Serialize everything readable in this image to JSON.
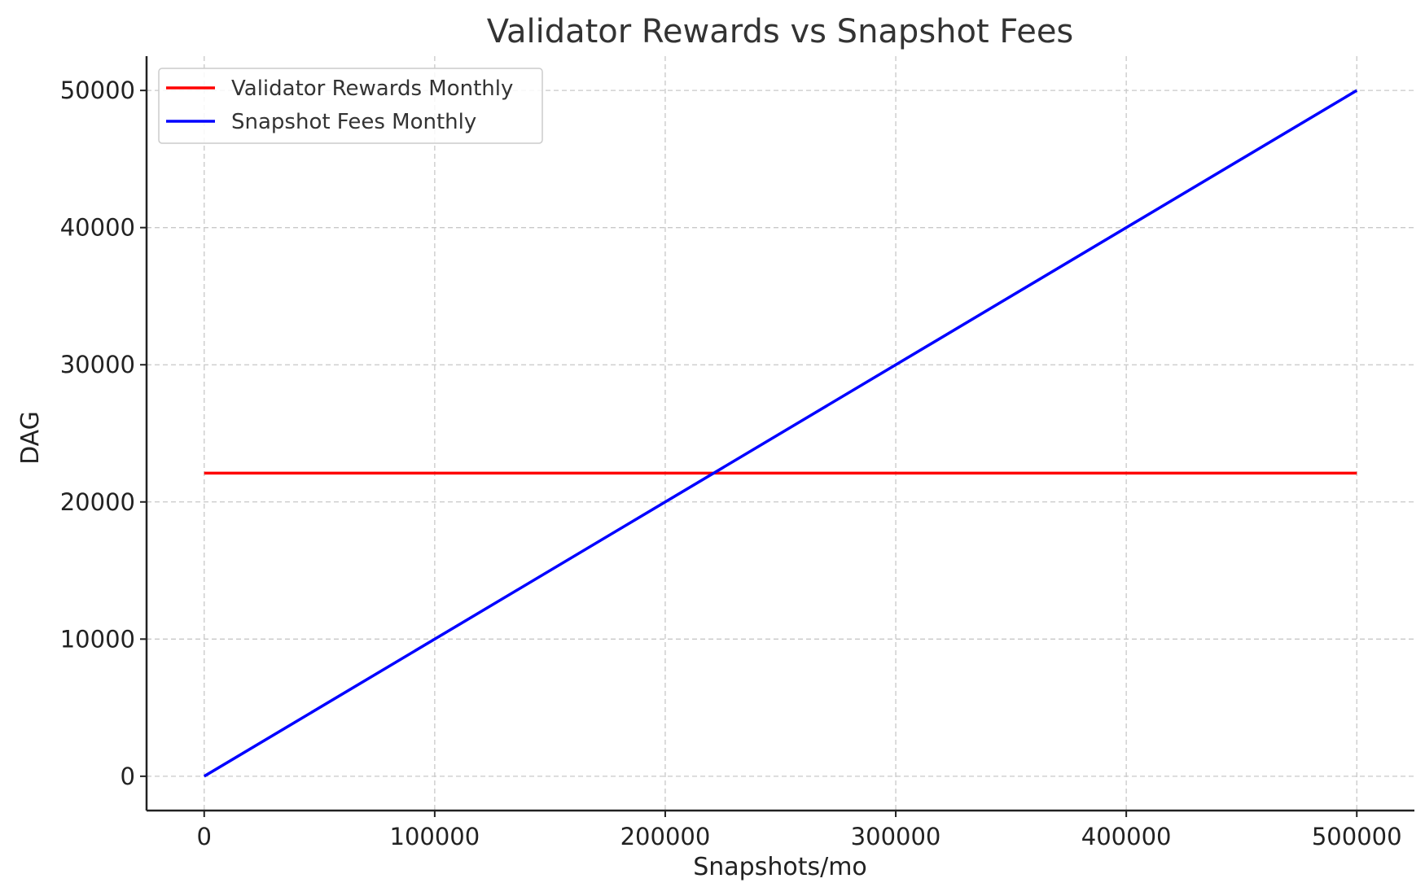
{
  "chart_data": {
    "type": "line",
    "title": "Validator Rewards vs Snapshot Fees",
    "xlabel": "Snapshots/mo",
    "ylabel": "DAG",
    "xlim": [
      -25000,
      525000
    ],
    "ylim": [
      -2500,
      52500
    ],
    "xticks": [
      0,
      100000,
      200000,
      300000,
      400000,
      500000
    ],
    "yticks": [
      0,
      10000,
      20000,
      30000,
      40000,
      50000
    ],
    "grid": true,
    "legend_position": "top-left",
    "series": [
      {
        "name": "Validator Rewards Monthly",
        "color": "#ff0000",
        "x": [
          0,
          500000
        ],
        "y": [
          22100,
          22100
        ]
      },
      {
        "name": "Snapshot Fees Monthly",
        "color": "#0000ff",
        "x": [
          0,
          500000
        ],
        "y": [
          0,
          50000
        ]
      }
    ]
  }
}
